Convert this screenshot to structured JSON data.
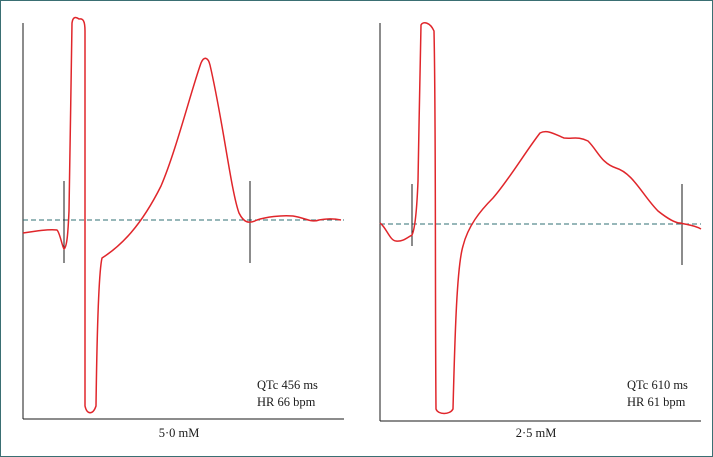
{
  "panels": [
    {
      "concentration": "5·0 mM",
      "qtc": "QTc 456 ms",
      "hr": "HR 66 bpm"
    },
    {
      "concentration": "2·5 mM",
      "qtc": "QTc 610 ms",
      "hr": "HR 61 bpm"
    }
  ],
  "colors": {
    "trace": "#e0262b",
    "baseline": "#2f6f73",
    "axes": "#1a1a1a",
    "border": "#3a6f73"
  }
}
